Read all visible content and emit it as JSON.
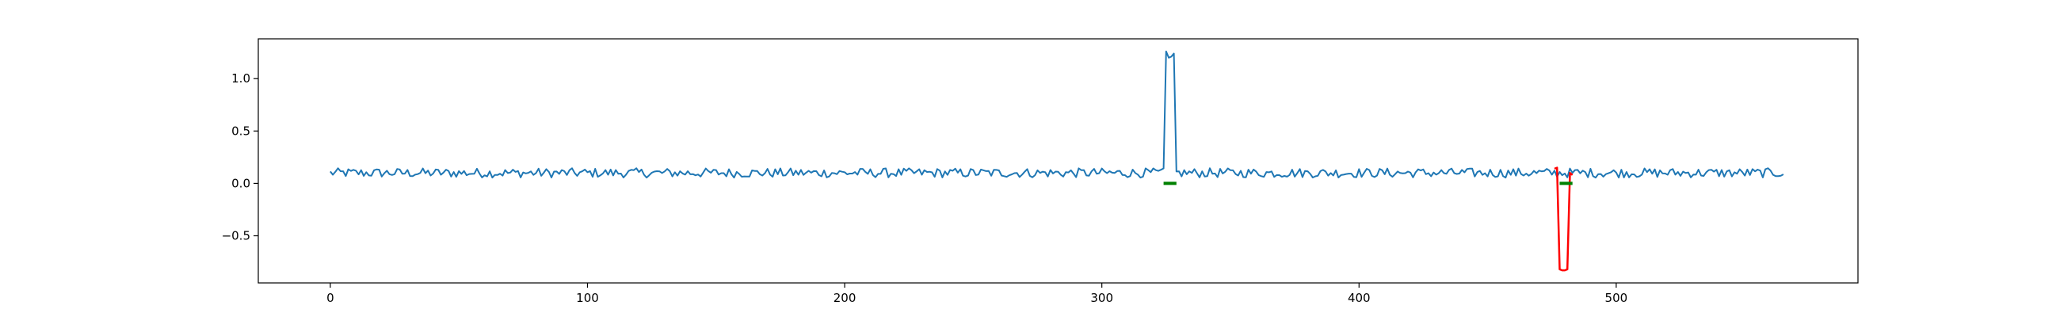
{
  "chart_data": {
    "type": "line",
    "title": "",
    "xlabel": "",
    "ylabel": "",
    "xlim": [
      -28,
      594
    ],
    "ylim": [
      -0.95,
      1.38
    ],
    "grid": false,
    "x_ticks": [
      0,
      100,
      200,
      300,
      400,
      500
    ],
    "x_tick_labels": [
      "0",
      "100",
      "200",
      "300",
      "400",
      "500"
    ],
    "y_ticks": [
      1.0,
      0.5,
      0.0,
      -0.5
    ],
    "y_tick_labels": [
      "1.0",
      "0.5",
      "0.0",
      "−0.5"
    ],
    "series": [
      {
        "color": "#1f77b4",
        "length": 566,
        "baseline": 0.1,
        "noise_amplitude": 0.045,
        "spikes": [
          {
            "x": 325,
            "y": 1.26
          },
          {
            "x": 326,
            "y": 1.2
          },
          {
            "x": 327,
            "y": 1.21
          },
          {
            "x": 328,
            "y": 1.24
          }
        ]
      },
      {
        "color": "#ff0000",
        "x": [
          476,
          477,
          478,
          479,
          480,
          481,
          482,
          483
        ],
        "y": [
          0.14,
          0.15,
          -0.82,
          -0.83,
          -0.83,
          -0.82,
          0.1,
          0.08
        ]
      }
    ],
    "markers": [
      {
        "color": "#008000",
        "x_start": 324,
        "x_end": 329,
        "y": 0.0
      },
      {
        "color": "#008000",
        "x_start": 478,
        "x_end": 483,
        "y": 0.0
      }
    ]
  }
}
